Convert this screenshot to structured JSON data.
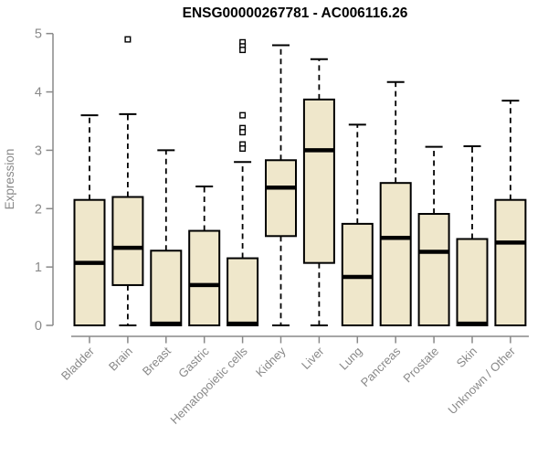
{
  "chart_data": {
    "type": "boxplot",
    "title": "ENSG00000267781 - AC006116.26",
    "ylabel": "Expression",
    "xlabel": "",
    "ylim": [
      0,
      5
    ],
    "yticks": [
      0,
      1,
      2,
      3,
      4,
      5
    ],
    "grid": false,
    "legend_position": "none",
    "categories": [
      "Bladder",
      "Brain",
      "Breast",
      "Gastric",
      "Hematopoietic cells",
      "Kidney",
      "Liver",
      "Lung",
      "Pancreas",
      "Prostate",
      "Skin",
      "Unknown / Other"
    ],
    "boxes": [
      {
        "category": "Bladder",
        "whisker_low": 0,
        "q1": 0,
        "median": 1.07,
        "q3": 2.15,
        "whisker_high": 3.6,
        "outliers": []
      },
      {
        "category": "Brain",
        "whisker_low": 0,
        "q1": 0.69,
        "median": 1.33,
        "q3": 2.2,
        "whisker_high": 3.62,
        "outliers": [
          4.9
        ]
      },
      {
        "category": "Breast",
        "whisker_low": 0,
        "q1": 0,
        "median": 0.03,
        "q3": 1.28,
        "whisker_high": 3.0,
        "outliers": []
      },
      {
        "category": "Gastric",
        "whisker_low": 0,
        "q1": 0,
        "median": 0.69,
        "q3": 1.62,
        "whisker_high": 2.38,
        "outliers": []
      },
      {
        "category": "Hematopoietic cells",
        "whisker_low": 0,
        "q1": 0,
        "median": 0.03,
        "q3": 1.15,
        "whisker_high": 2.8,
        "outliers": [
          4.85,
          4.78,
          4.72,
          3.6,
          3.38,
          3.31,
          3.1,
          3.03
        ]
      },
      {
        "category": "Kidney",
        "whisker_low": 0,
        "q1": 1.53,
        "median": 2.36,
        "q3": 2.83,
        "whisker_high": 4.8,
        "outliers": []
      },
      {
        "category": "Liver",
        "whisker_low": 0,
        "q1": 1.07,
        "median": 3.0,
        "q3": 3.87,
        "whisker_high": 4.56,
        "outliers": []
      },
      {
        "category": "Lung",
        "whisker_low": 0,
        "q1": 0,
        "median": 0.83,
        "q3": 1.74,
        "whisker_high": 3.44,
        "outliers": []
      },
      {
        "category": "Pancreas",
        "whisker_low": 0,
        "q1": 0,
        "median": 1.5,
        "q3": 2.44,
        "whisker_high": 4.17,
        "outliers": []
      },
      {
        "category": "Prostate",
        "whisker_low": 0,
        "q1": 0,
        "median": 1.26,
        "q3": 1.91,
        "whisker_high": 3.06,
        "outliers": []
      },
      {
        "category": "Skin",
        "whisker_low": 0,
        "q1": 0,
        "median": 0.03,
        "q3": 1.48,
        "whisker_high": 3.07,
        "outliers": []
      },
      {
        "category": "Unknown / Other",
        "whisker_low": 0,
        "q1": 0,
        "median": 1.42,
        "q3": 2.15,
        "whisker_high": 3.85,
        "outliers": []
      }
    ],
    "colors": {
      "box_fill": "#efe7cb",
      "box_border": "#000000",
      "median": "#000000",
      "whisker": "#000000",
      "outlier_fill": "#ffffff",
      "outlier_border": "#000000",
      "axis": "#898989",
      "tick_label": "#898989",
      "title": "#000000",
      "background": "#ffffff"
    }
  }
}
